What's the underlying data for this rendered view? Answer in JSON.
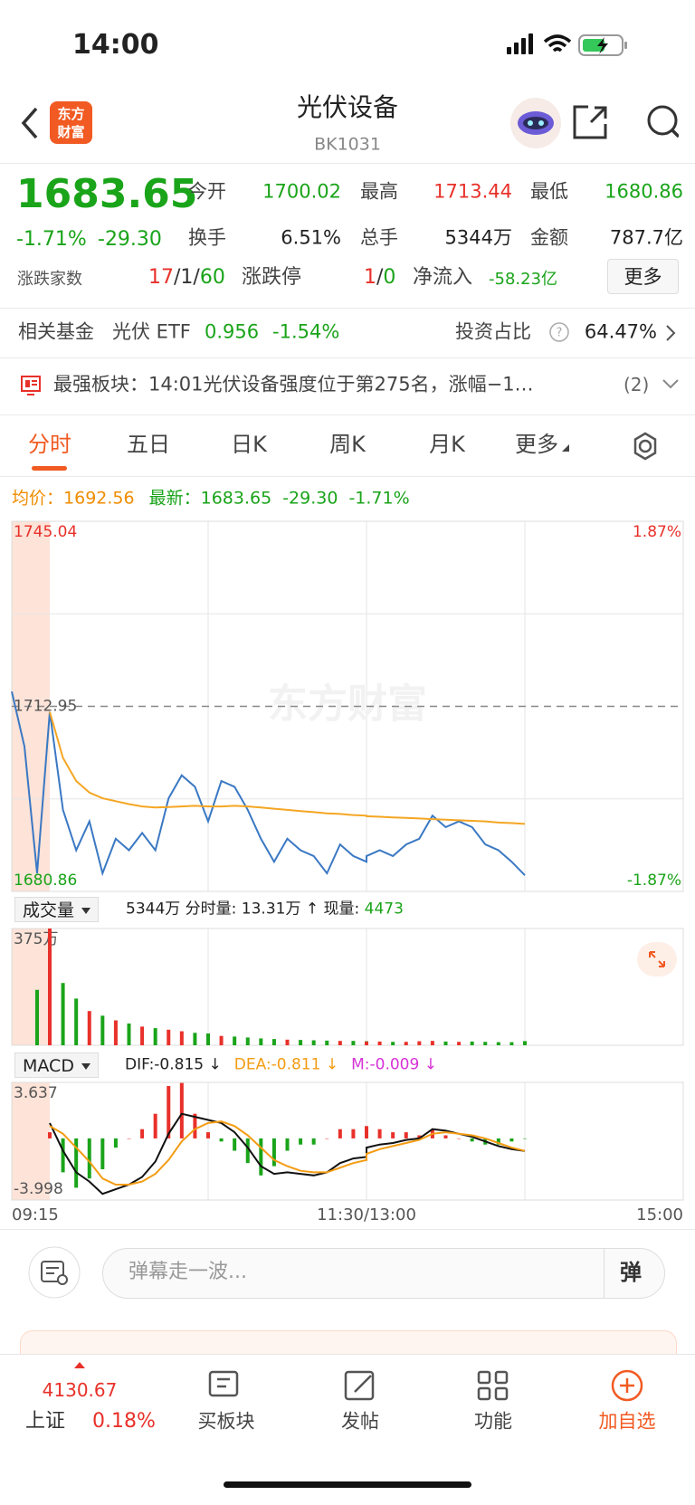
{
  "status_bar": {
    "time": "14:00"
  },
  "header": {
    "logo": [
      "东方",
      "财富"
    ],
    "title": "光伏设备",
    "code": "BK1031"
  },
  "quote": {
    "price": "1683.65",
    "change_pct": "-1.71%",
    "change": "-29.30",
    "stats": [
      {
        "label": "今开",
        "value": "1700.02",
        "color": "#1aa41a"
      },
      {
        "label": "最高",
        "value": "1713.44",
        "color": "#e8312a"
      },
      {
        "label": "最低",
        "value": "1680.86",
        "color": "#1aa41a"
      },
      {
        "label": "换手",
        "value": "6.51%",
        "color": "#222"
      },
      {
        "label": "总手",
        "value": "5344万",
        "color": "#222"
      },
      {
        "label": "金额",
        "value": "787.7亿",
        "color": "#222"
      }
    ],
    "breadth_label": "涨跌家数",
    "breadth": [
      "17",
      "/",
      "1",
      "/",
      "60"
    ],
    "breadth_colors": [
      "#e8312a",
      "#333",
      "#333",
      "#333",
      "#1aa41a"
    ],
    "limit_label": "涨跌停",
    "limit": [
      "1",
      "/",
      "0"
    ],
    "limit_colors": [
      "#e8312a",
      "#333",
      "#1aa41a"
    ],
    "flow_label": "净流入",
    "flow": "-58.23亿",
    "more": "更多"
  },
  "fund": {
    "label": "相关基金",
    "name": "光伏 ETF",
    "price": "0.956",
    "change": "-1.54%",
    "ratio_label": "投资占比",
    "ratio": "64.47%"
  },
  "news": {
    "text": "最强板块：14:01光伏设备强度位于第275名，涨幅−1…",
    "count": "(2)"
  },
  "tabs": [
    "分时",
    "五日",
    "日K",
    "周K",
    "月K",
    "更多"
  ],
  "summary": {
    "avg_label": "均价：",
    "avg": "1692.56",
    "last_label": "最新：",
    "last": "1683.65",
    "change": "-29.30",
    "change_pct": "-1.71%"
  },
  "chart_data": [
    {
      "type": "line",
      "watermark": "东方财富",
      "x": [
        "09:15",
        "09:20",
        "09:25",
        "09:30",
        "09:35",
        "09:40",
        "09:45",
        "09:50",
        "09:55",
        "10:00",
        "10:05",
        "10:10",
        "10:15",
        "10:20",
        "10:25",
        "10:30",
        "10:35",
        "10:40",
        "10:45",
        "10:50",
        "10:55",
        "11:00",
        "11:05",
        "11:10",
        "11:15",
        "11:20",
        "11:25",
        "11:30",
        "13:00",
        "13:05",
        "13:10",
        "13:15",
        "13:20",
        "13:25",
        "13:30",
        "13:35",
        "13:40",
        "13:45",
        "13:50",
        "13:55",
        "14:00"
      ],
      "series": [
        {
          "color": "#3a78c3",
          "values": [
            1715.5,
            1706,
            1684,
            1712,
            1695,
            1688,
            1693,
            1684,
            1690,
            1688,
            1691,
            1688,
            1697,
            1701,
            1699,
            1693,
            1700,
            1699,
            1695,
            1690,
            1686,
            1690,
            1688,
            1687,
            1684,
            1689,
            1687,
            1686,
            1687,
            1688,
            1687,
            1689,
            1690,
            1694,
            1692,
            1693,
            1692,
            1689,
            1688,
            1686,
            1683.65
          ]
        },
        {
          "color": "#f5a623",
          "values": [
            null,
            null,
            null,
            1712,
            1704,
            1700,
            1698,
            1697,
            1696.5,
            1696,
            1695.6,
            1695.4,
            1695.5,
            1695.6,
            1695.7,
            1695.6,
            1695.6,
            1695.7,
            1695.6,
            1695.4,
            1695.2,
            1695.0,
            1694.8,
            1694.6,
            1694.4,
            1694.3,
            1694.1,
            1694.0,
            1693.9,
            1693.8,
            1693.7,
            1693.6,
            1693.5,
            1693.4,
            1693.3,
            1693.2,
            1693.1,
            1693.0,
            1692.8,
            1692.7,
            1692.56
          ]
        }
      ],
      "ylim": [
        1680.86,
        1745.04
      ],
      "yticks": [
        1745.04,
        1712.95,
        1680.86
      ],
      "y2lim": [
        -1.87,
        1.87
      ],
      "y2ticks": [
        {
          "value": 1.87,
          "label": "1.87%"
        },
        {
          "value": -1.87,
          "label": "-1.87%"
        }
      ],
      "up_color": "#e8312a",
      "down_color": "#1aa41a",
      "flat_color": "#999"
    },
    {
      "type": "bar",
      "values": [
        null,
        null,
        178,
        375,
        200,
        150,
        110,
        95,
        80,
        70,
        60,
        55,
        50,
        45,
        40,
        38,
        30,
        28,
        25,
        22,
        20,
        18,
        17,
        16,
        15,
        14,
        14,
        13,
        12,
        12,
        11,
        11,
        13,
        14,
        12,
        11,
        12,
        11,
        10,
        10,
        13.31
      ],
      "ylim": [
        0,
        375
      ],
      "yticks": [
        {
          "value": 375,
          "label": "375万"
        }
      ],
      "up_color": "#e8312a",
      "down_color": "#1aa41a"
    },
    {
      "type": "macd",
      "series": [
        {
          "color": "#111",
          "values": [
            null,
            null,
            null,
            1.0,
            -0.8,
            -2.2,
            -2.8,
            -3.6,
            -3.3,
            -3.0,
            -2.5,
            -1.5,
            0.3,
            1.6,
            1.4,
            1.2,
            1.0,
            0.4,
            -0.6,
            -1.8,
            -2.3,
            -2.2,
            -2.3,
            -2.4,
            -2.2,
            -1.6,
            -1.3,
            -1.2,
            -0.6,
            -0.4,
            -0.3,
            -0.1,
            0.0,
            0.6,
            0.5,
            0.3,
            0.1,
            -0.2,
            -0.5,
            -0.7,
            -0.815
          ]
        },
        {
          "color": "#f39c12",
          "values": [
            null,
            null,
            null,
            0.8,
            0.3,
            -0.6,
            -1.5,
            -2.6,
            -3.0,
            -3.0,
            -2.8,
            -2.3,
            -1.4,
            -0.2,
            0.6,
            1.0,
            1.1,
            0.8,
            0.2,
            -0.6,
            -1.4,
            -1.8,
            -2.1,
            -2.2,
            -2.2,
            -1.9,
            -1.6,
            -1.4,
            -1.0,
            -0.7,
            -0.5,
            -0.3,
            -0.1,
            0.3,
            0.4,
            0.3,
            0.2,
            0.0,
            -0.3,
            -0.6,
            -0.811
          ]
        }
      ],
      "histogram": {
        "values": [
          null,
          null,
          null,
          0.4,
          -2.2,
          -3.2,
          -2.6,
          -2.0,
          -0.6,
          0,
          0.6,
          1.6,
          3.4,
          3.6,
          1.6,
          0.4,
          -0.2,
          -0.8,
          -1.6,
          -2.4,
          -1.8,
          -0.8,
          -0.4,
          -0.4,
          0,
          0.6,
          0.6,
          0.4,
          0.8,
          0.6,
          0.4,
          0.4,
          0.2,
          0.6,
          0.2,
          0,
          -0.2,
          -0.4,
          -0.4,
          -0.2,
          -0.009
        ],
        "up_color": "#e8312a",
        "down_color": "#1aa41a"
      },
      "ylim": [
        -3.998,
        3.637
      ],
      "yticks": [
        3.637,
        -3.998
      ],
      "xticks": [
        "09:15",
        "11:30/13:00",
        "15:00"
      ]
    }
  ],
  "volume_bar": {
    "selector": "成交量",
    "text": "5344万 分时量: 13.31万 ↑ 现量:",
    "current": "4473"
  },
  "macd_bar": {
    "selector": "MACD",
    "dif": "DIF:-0.815 ↓",
    "dea": "DEA:-0.811 ↓",
    "m": "M:-0.009 ↓"
  },
  "comment": {
    "placeholder": "弹幕走一波...",
    "button": "弹"
  },
  "bottom_nav": {
    "index_value": "4130.67",
    "index_name": "上证",
    "index_change": "0.18%",
    "items": [
      "买板块",
      "发帖",
      "功能",
      "加自选"
    ],
    "active_color": "#f15a22"
  }
}
